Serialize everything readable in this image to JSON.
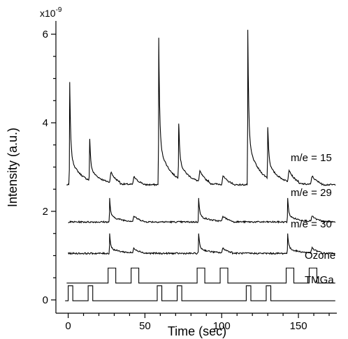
{
  "chart_data": {
    "type": "line",
    "title": "",
    "xlabel": "Time (sec)",
    "ylabel": "Intensity (a.u.)",
    "y_multiplier_label": "x10",
    "y_multiplier_exponent": "-9",
    "xlim": [
      -8,
      175
    ],
    "ylim": [
      -0.3,
      6.3
    ],
    "x_ticks": [
      0,
      50,
      100,
      150
    ],
    "x_minor_step": 10,
    "y_ticks": [
      0,
      2,
      4,
      6
    ],
    "y_minor_step": 0.5,
    "pulse_high": {
      "ozone": [
        [
          26,
          31
        ],
        [
          41,
          46
        ],
        [
          84,
          89
        ],
        [
          99,
          104
        ],
        [
          142,
          147
        ],
        [
          157,
          162
        ]
      ],
      "tmga": [
        [
          0,
          3
        ],
        [
          13,
          16
        ],
        [
          58,
          61
        ],
        [
          71,
          74
        ],
        [
          116,
          119
        ],
        [
          129,
          132
        ]
      ]
    },
    "series": [
      {
        "name": "m/e = 15",
        "baseline": 2.6,
        "x_start": -1,
        "x_end": 174,
        "spikes": [
          {
            "x": 1,
            "peak": 4.92
          },
          {
            "x": 14,
            "peak": 3.6
          },
          {
            "x": 59,
            "peak": 5.92
          },
          {
            "x": 72,
            "peak": 3.98
          },
          {
            "x": 117,
            "peak": 6.1
          },
          {
            "x": 130,
            "peak": 3.9
          }
        ],
        "bumps": [
          {
            "x": 27,
            "peak": 2.84
          },
          {
            "x": 42,
            "peak": 2.78
          },
          {
            "x": 85,
            "peak": 2.84
          },
          {
            "x": 100,
            "peak": 2.8
          },
          {
            "x": 143,
            "peak": 2.88
          },
          {
            "x": 158,
            "peak": 2.8
          }
        ]
      },
      {
        "name": "m/e = 29",
        "baseline": 1.76,
        "x_start": 0,
        "x_end": 174,
        "spikes": [
          {
            "x": 27,
            "peak": 2.3
          },
          {
            "x": 85,
            "peak": 2.3
          },
          {
            "x": 143,
            "peak": 2.3
          }
        ],
        "bumps": [
          {
            "x": 42,
            "peak": 1.88
          },
          {
            "x": 100,
            "peak": 1.88
          },
          {
            "x": 158,
            "peak": 1.88
          }
        ]
      },
      {
        "name": "m/e = 30",
        "baseline": 1.05,
        "x_start": 0,
        "x_end": 174,
        "spikes": [
          {
            "x": 27,
            "peak": 1.5
          },
          {
            "x": 85,
            "peak": 1.5
          },
          {
            "x": 143,
            "peak": 1.5
          }
        ],
        "bumps": [
          {
            "x": 42,
            "peak": 1.16
          },
          {
            "x": 100,
            "peak": 1.16
          },
          {
            "x": 158,
            "peak": 1.16
          }
        ]
      },
      {
        "name": "Ozone",
        "baseline": 0.38,
        "high": 0.72,
        "x_start": -1,
        "x_end": 174
      },
      {
        "name": "TMGa",
        "baseline": -0.02,
        "high": 0.32,
        "x_start": -2,
        "x_end": 174
      }
    ]
  }
}
